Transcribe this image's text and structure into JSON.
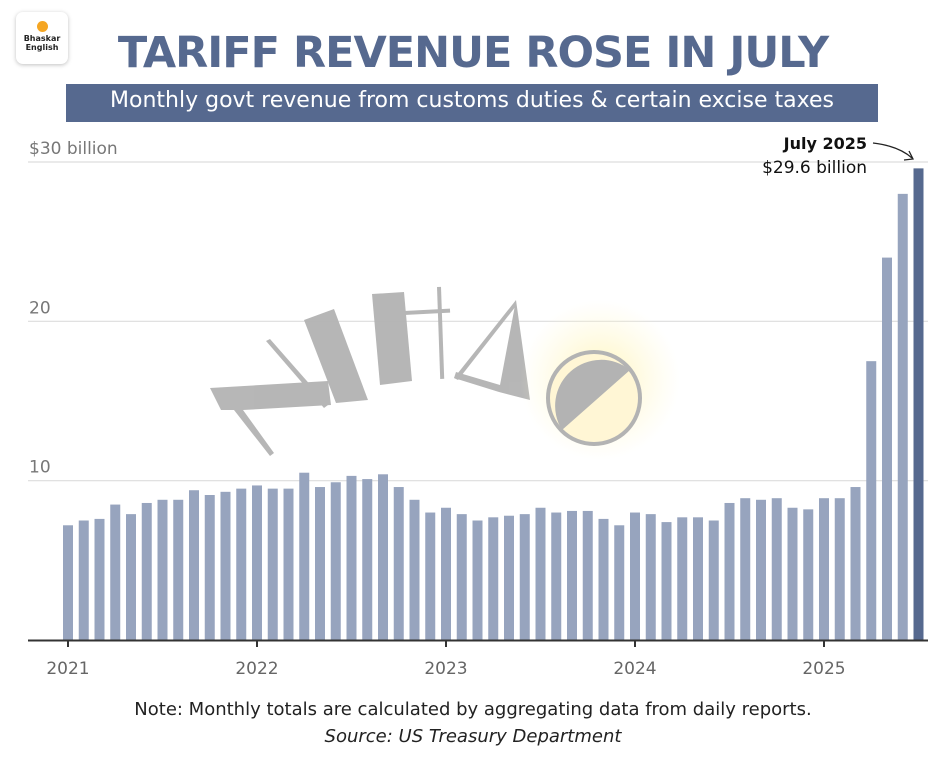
{
  "branding": {
    "logo_text": "Bhaskar\nEnglish"
  },
  "header": {
    "title": "TARIFF REVENUE ROSE IN JULY",
    "subtitle": "Monthly govt revenue from customs duties & certain excise taxes"
  },
  "footer": {
    "note": "Note: Monthly totals are calculated by aggregating data from daily reports.",
    "source": "Source: US Treasury Department"
  },
  "watermark": {
    "text": "NIHAO"
  },
  "colors": {
    "bar": "#97a4be",
    "highlight": "#56698f",
    "grid": "#dddddd",
    "axis": "#333333",
    "title": "#56698f"
  },
  "chart_data": {
    "type": "bar",
    "title": "TARIFF REVENUE ROSE IN JULY",
    "subtitle": "Monthly govt revenue from customs duties & certain excise taxes",
    "xlabel": "",
    "ylabel": "",
    "unit": "$ billion",
    "ylim": [
      0,
      30
    ],
    "yticks": [
      {
        "value": 10,
        "label": "10"
      },
      {
        "value": 20,
        "label": "20"
      },
      {
        "value": 30,
        "label": "$30 billion"
      }
    ],
    "xticks": [
      {
        "index": 0,
        "label": "2021"
      },
      {
        "index": 12,
        "label": "2022"
      },
      {
        "index": 24,
        "label": "2023"
      },
      {
        "index": 36,
        "label": "2024"
      },
      {
        "index": 48,
        "label": "2025"
      }
    ],
    "grid": true,
    "categories": [
      "Jan 2021",
      "Feb 2021",
      "Mar 2021",
      "Apr 2021",
      "May 2021",
      "Jun 2021",
      "Jul 2021",
      "Aug 2021",
      "Sep 2021",
      "Oct 2021",
      "Nov 2021",
      "Dec 2021",
      "Jan 2022",
      "Feb 2022",
      "Mar 2022",
      "Apr 2022",
      "May 2022",
      "Jun 2022",
      "Jul 2022",
      "Aug 2022",
      "Sep 2022",
      "Oct 2022",
      "Nov 2022",
      "Dec 2022",
      "Jan 2023",
      "Feb 2023",
      "Mar 2023",
      "Apr 2023",
      "May 2023",
      "Jun 2023",
      "Jul 2023",
      "Aug 2023",
      "Sep 2023",
      "Oct 2023",
      "Nov 2023",
      "Dec 2023",
      "Jan 2024",
      "Feb 2024",
      "Mar 2024",
      "Apr 2024",
      "May 2024",
      "Jun 2024",
      "Jul 2024",
      "Aug 2024",
      "Sep 2024",
      "Oct 2024",
      "Nov 2024",
      "Dec 2024",
      "Jan 2025",
      "Feb 2025",
      "Mar 2025",
      "Apr 2025",
      "May 2025",
      "Jun 2025",
      "Jul 2025"
    ],
    "values": [
      7.2,
      7.5,
      7.6,
      8.5,
      7.9,
      8.6,
      8.8,
      8.8,
      9.4,
      9.1,
      9.3,
      9.5,
      9.7,
      9.5,
      9.5,
      10.5,
      9.6,
      9.9,
      10.3,
      10.1,
      10.4,
      9.6,
      8.8,
      8.0,
      8.3,
      7.9,
      7.5,
      7.7,
      7.8,
      7.9,
      8.3,
      8.0,
      8.1,
      8.1,
      7.6,
      7.2,
      8.0,
      7.9,
      7.4,
      7.7,
      7.7,
      7.5,
      8.6,
      8.9,
      8.8,
      8.9,
      8.3,
      8.2,
      8.9,
      8.9,
      9.6,
      17.5,
      24.0,
      28.0,
      29.6
    ],
    "highlight_index": 54,
    "annotation": {
      "label": "July 2025",
      "value_label": "$29.6 billion"
    }
  }
}
